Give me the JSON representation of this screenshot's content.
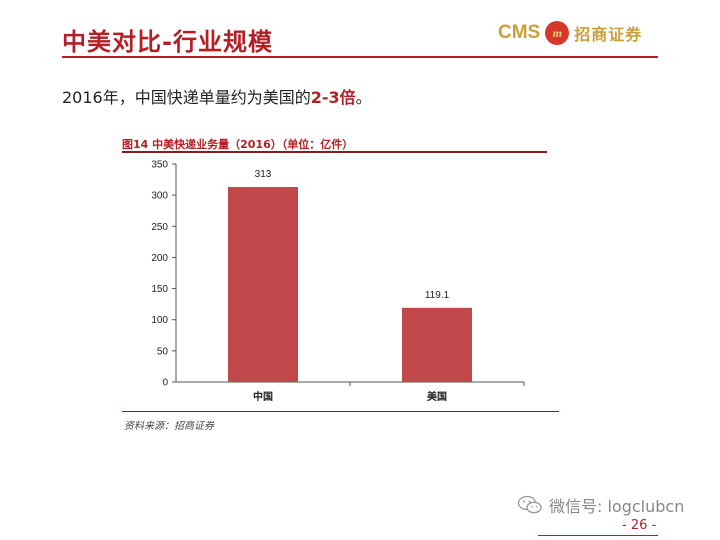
{
  "slide": {
    "title": "中美对比-行业规模",
    "subtitle_pre": "2016年，中国快递单量约为美国的",
    "subtitle_highlight": "2-3倍",
    "subtitle_post": "。"
  },
  "logo": {
    "cms": "CMS",
    "emblem": "m",
    "name_cn": "招商证券"
  },
  "figure": {
    "title": "图14  中美快递业务量（2016）（单位：亿件）",
    "source": "资料来源：招商证券"
  },
  "chart_data": {
    "type": "bar",
    "title": "图14  中美快递业务量（2016）（单位：亿件）",
    "categories": [
      "中国",
      "美国"
    ],
    "values": [
      313,
      119.1
    ],
    "data_labels": [
      "313",
      "119.1"
    ],
    "ylim": [
      0,
      350
    ],
    "yticks": [
      0,
      50,
      100,
      150,
      200,
      250,
      300,
      350
    ],
    "xlabel": "",
    "ylabel": "",
    "grid": false,
    "bar_color": "#c0474a"
  },
  "footer": {
    "wechat": "微信号: logclubcn",
    "page": "- 26 -"
  },
  "colors": {
    "accent": "#b31f24",
    "gold": "#c9a13b"
  }
}
